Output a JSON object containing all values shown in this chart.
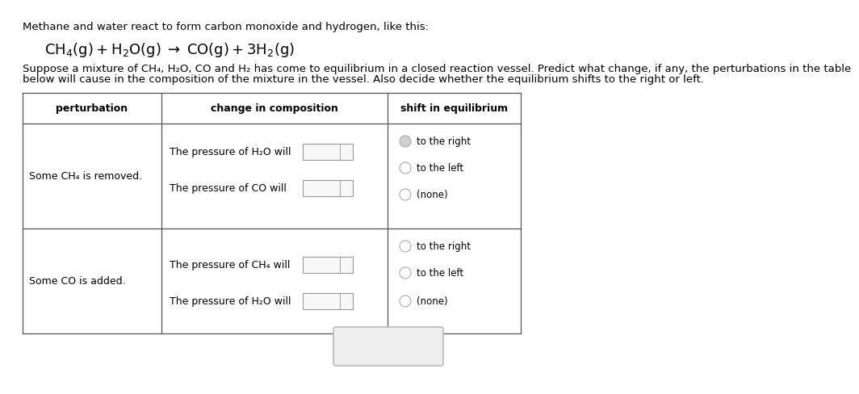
{
  "bg_color": "#ffffff",
  "title_line": "Methane and water react to form carbon monoxide and hydrogen, like this:",
  "paragraph_line1": "Suppose a mixture of CH₄, H₂O, CO and H₂ has come to equilibrium in a closed reaction vessel. Predict what change, if any, the perturbations in the table",
  "paragraph_line2": "below will cause in the composition of the mixture in the vessel. Also decide whether the equilibrium shifts to the right or left.",
  "text_color": "#000000",
  "bg_color_white": "#ffffff",
  "table_border_color": "#555555",
  "radio_border_color": "#aaaaaa",
  "radio_fill_selected": "#d0d0d0",
  "radio_fill_empty": "#ffffff",
  "dropdown_bg": "#f8f8f8",
  "dropdown_border": "#999999",
  "bottom_box_bg": "#eeeeee",
  "bottom_box_border": "#bbbbbb",
  "font_size_title": 9.5,
  "font_size_eq": 13,
  "font_size_para": 9.5,
  "font_size_table": 9,
  "font_size_header": 9,
  "font_size_radio": 8.5,
  "font_size_btn": 11
}
